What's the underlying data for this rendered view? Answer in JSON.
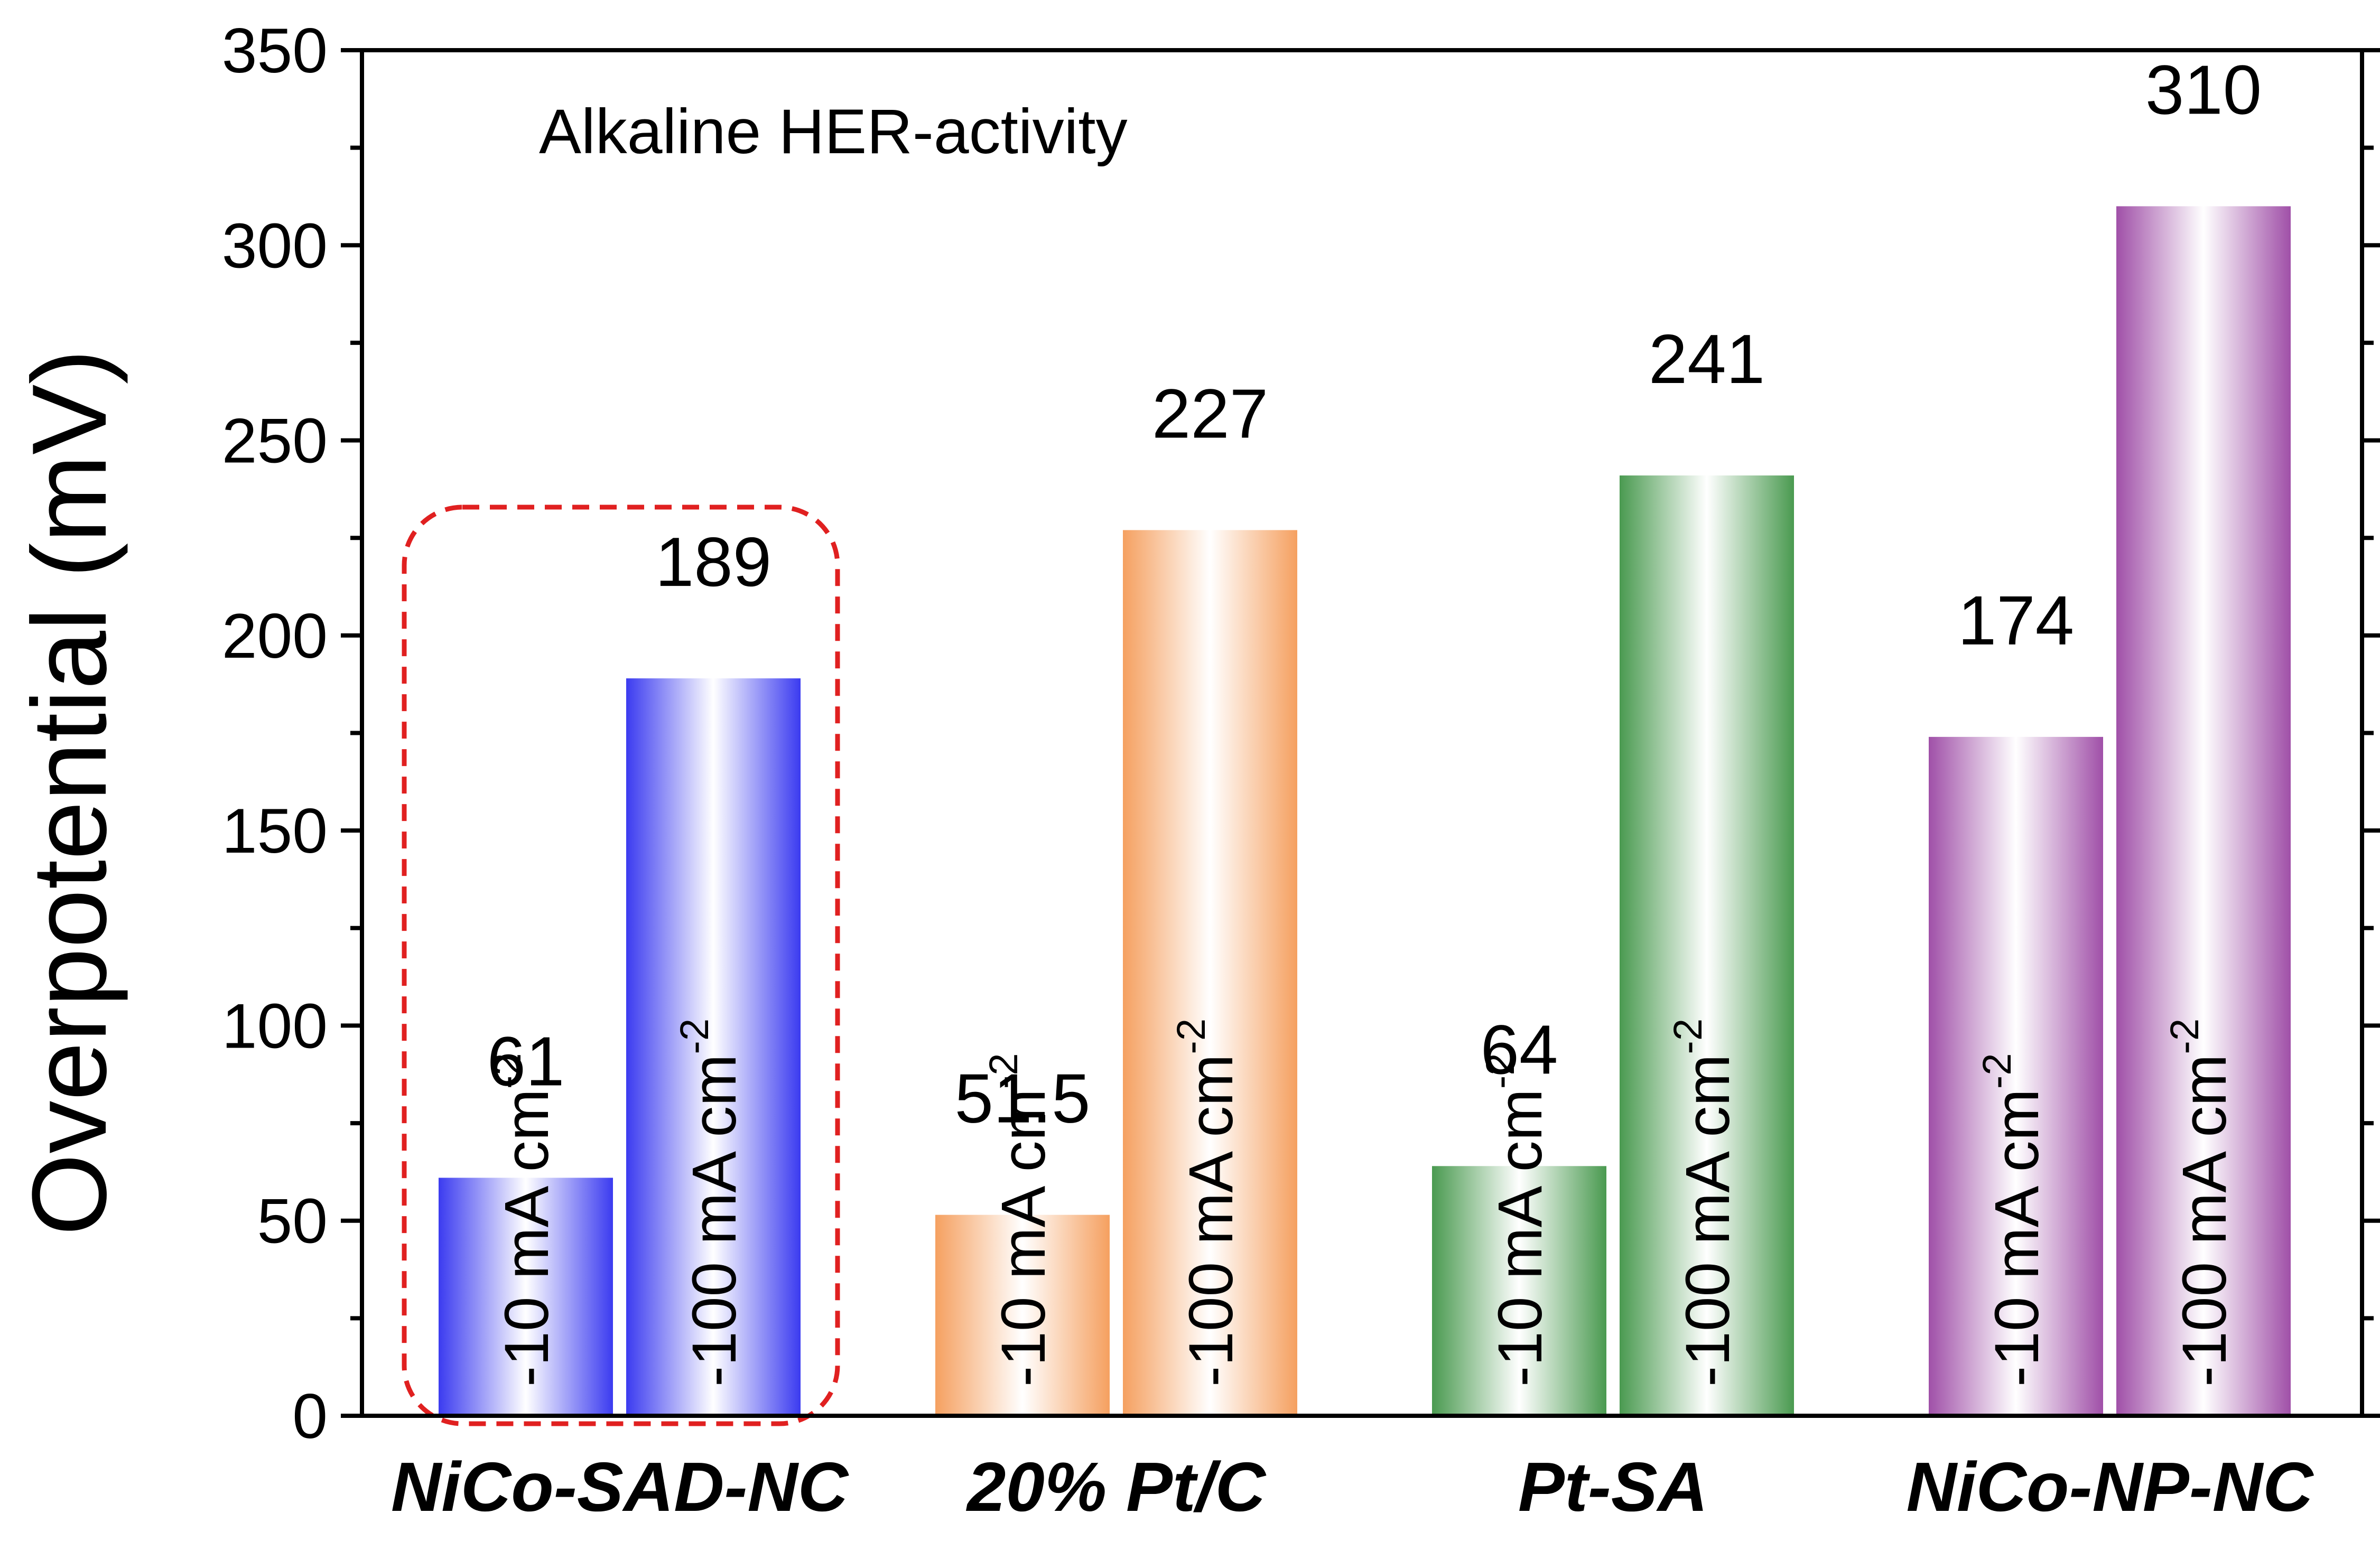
{
  "chart_data": {
    "type": "bar",
    "title": "Alkaline HER-activity",
    "ylabel": "Overpotential (mV)",
    "xlabel": "",
    "ylim": [
      0,
      350
    ],
    "yticks": [
      0,
      50,
      100,
      150,
      200,
      250,
      300,
      350
    ],
    "categories": [
      "NiCo-SAD-NC",
      "20% Pt/C",
      "Pt-SA",
      "NiCo-NP-NC"
    ],
    "series": [
      {
        "name": "-10 mA cm",
        "superscript": "-2",
        "values": [
          61,
          51.5,
          64,
          174
        ]
      },
      {
        "name": "-100 mA cm",
        "superscript": "-2",
        "values": [
          189,
          227,
          241,
          310
        ]
      }
    ],
    "value_labels": [
      [
        "61",
        "51.5",
        "64",
        "174"
      ],
      [
        "189",
        "227",
        "241",
        "310"
      ]
    ],
    "colors": [
      "#3b3bf0",
      "#f5a060",
      "#4a9a50",
      "#a050a8"
    ],
    "highlight": {
      "category": "NiCo-SAD-NC",
      "style": "red dashed rounded box",
      "color": "#e02020"
    }
  }
}
